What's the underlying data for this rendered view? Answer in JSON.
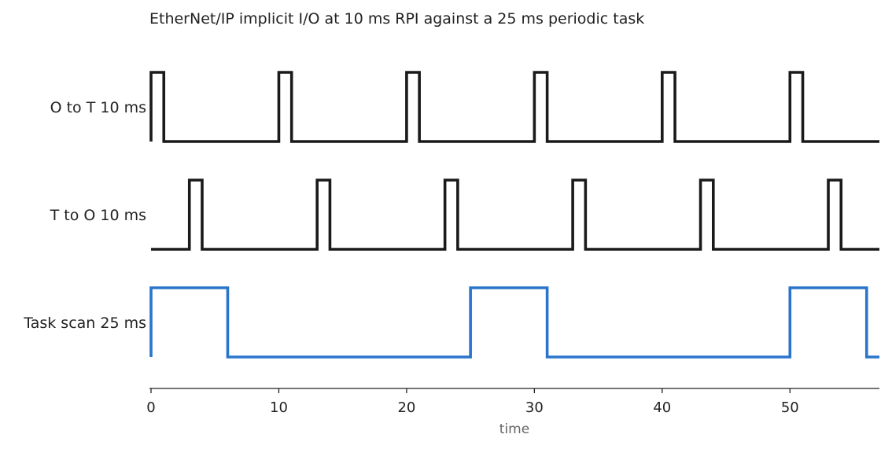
{
  "chart_data": {
    "type": "line",
    "title": "EtherNet/IP implicit I/O at 10 ms RPI against a 25 ms periodic task",
    "xlabel": "time",
    "ylabel": "",
    "xlim": [
      0,
      57
    ],
    "xticks": [
      0,
      10,
      20,
      30,
      40,
      50
    ],
    "xtick_labels": [
      "0",
      "10",
      "20",
      "30",
      "40",
      "50"
    ],
    "grid": false,
    "series": [
      {
        "name": "O to T 10 ms",
        "color": "#1a1a1a",
        "points": [
          [
            0,
            0
          ],
          [
            0,
            1
          ],
          [
            1,
            1
          ],
          [
            1,
            0
          ],
          [
            10,
            0
          ],
          [
            10,
            1
          ],
          [
            11,
            1
          ],
          [
            11,
            0
          ],
          [
            20,
            0
          ],
          [
            20,
            1
          ],
          [
            21,
            1
          ],
          [
            21,
            0
          ],
          [
            30,
            0
          ],
          [
            30,
            1
          ],
          [
            31,
            1
          ],
          [
            31,
            0
          ],
          [
            40,
            0
          ],
          [
            40,
            1
          ],
          [
            41,
            1
          ],
          [
            41,
            0
          ],
          [
            50,
            0
          ],
          [
            50,
            1
          ],
          [
            51,
            1
          ],
          [
            51,
            0
          ],
          [
            57,
            0
          ]
        ]
      },
      {
        "name": "T to O 10 ms",
        "color": "#1a1a1a",
        "points": [
          [
            0,
            0
          ],
          [
            3,
            0
          ],
          [
            3,
            1
          ],
          [
            4,
            1
          ],
          [
            4,
            0
          ],
          [
            13,
            0
          ],
          [
            13,
            1
          ],
          [
            14,
            1
          ],
          [
            14,
            0
          ],
          [
            23,
            0
          ],
          [
            23,
            1
          ],
          [
            24,
            1
          ],
          [
            24,
            0
          ],
          [
            33,
            0
          ],
          [
            33,
            1
          ],
          [
            34,
            1
          ],
          [
            34,
            0
          ],
          [
            43,
            0
          ],
          [
            43,
            1
          ],
          [
            44,
            1
          ],
          [
            44,
            0
          ],
          [
            53,
            0
          ],
          [
            53,
            1
          ],
          [
            54,
            1
          ],
          [
            54,
            0
          ],
          [
            57,
            0
          ]
        ]
      },
      {
        "name": "Task scan 25 ms",
        "color": "#2a75cc",
        "points": [
          [
            0,
            0
          ],
          [
            0,
            1
          ],
          [
            6,
            1
          ],
          [
            6,
            0
          ],
          [
            25,
            0
          ],
          [
            25,
            1
          ],
          [
            31,
            1
          ],
          [
            31,
            0
          ],
          [
            50,
            0
          ],
          [
            50,
            1
          ],
          [
            56,
            1
          ],
          [
            56,
            0
          ],
          [
            57,
            0
          ]
        ]
      }
    ]
  }
}
